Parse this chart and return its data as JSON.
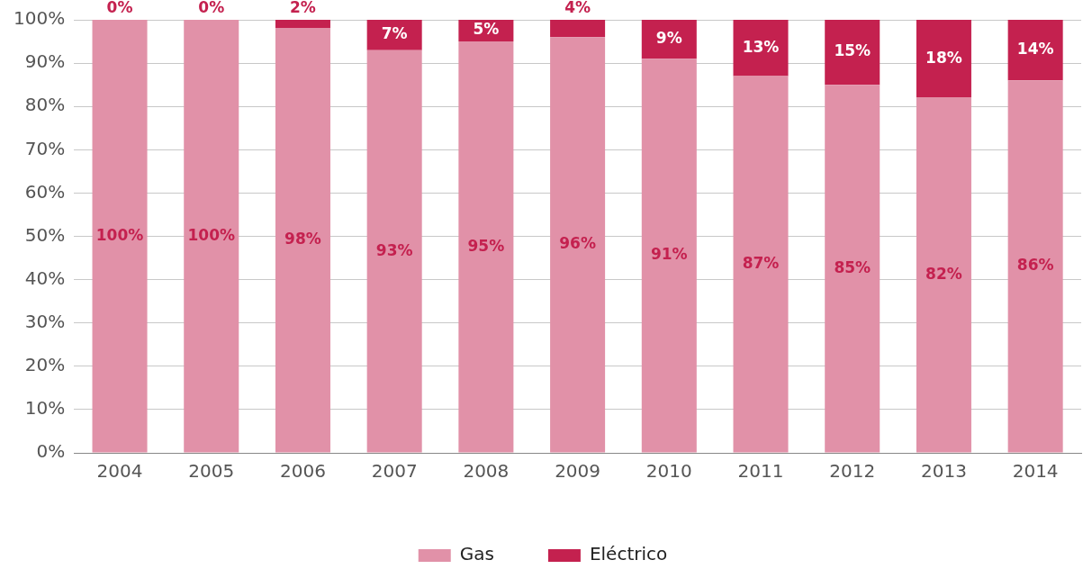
{
  "chart_data": {
    "type": "bar",
    "stacked": true,
    "categories": [
      "2004",
      "2005",
      "2006",
      "2007",
      "2008",
      "2009",
      "2010",
      "2011",
      "2012",
      "2013",
      "2014"
    ],
    "series": [
      {
        "name": "Gas",
        "color": "#e191a8",
        "values": [
          100,
          100,
          98,
          93,
          95,
          96,
          91,
          87,
          85,
          82,
          86
        ],
        "value_labels": [
          "100%",
          "100%",
          "98%",
          "93%",
          "95%",
          "96%",
          "91%",
          "87%",
          "85%",
          "82%",
          "86%"
        ]
      },
      {
        "name": "Eléctrico",
        "color": "#c4214f",
        "values": [
          0,
          0,
          2,
          7,
          5,
          4,
          9,
          13,
          15,
          18,
          14
        ],
        "value_labels": [
          "0%",
          "0%",
          "2%",
          "7%",
          "5%",
          "4%",
          "9%",
          "13%",
          "15%",
          "18%",
          "14%"
        ]
      }
    ],
    "ylim": [
      0,
      100
    ],
    "yticks": [
      {
        "value": 0,
        "label": "0%"
      },
      {
        "value": 10,
        "label": "10%"
      },
      {
        "value": 20,
        "label": "20%"
      },
      {
        "value": 30,
        "label": "30%"
      },
      {
        "value": 40,
        "label": "40%"
      },
      {
        "value": 50,
        "label": "50%"
      },
      {
        "value": 60,
        "label": "60%"
      },
      {
        "value": 70,
        "label": "70%"
      },
      {
        "value": 80,
        "label": "80%"
      },
      {
        "value": 90,
        "label": "90%"
      },
      {
        "value": 100,
        "label": "100%"
      }
    ],
    "grid": "y",
    "legend": "bottom"
  }
}
